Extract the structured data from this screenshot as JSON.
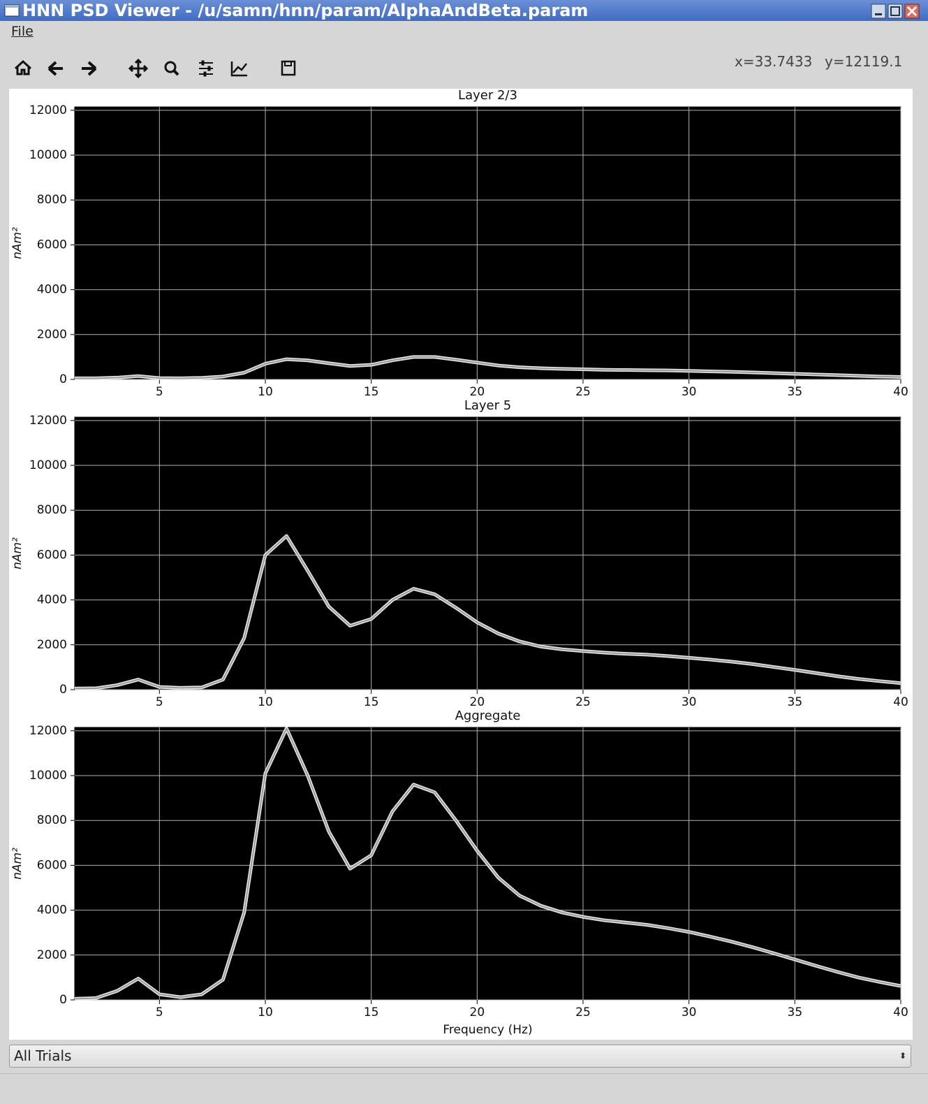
{
  "window": {
    "title": "HNN PSD Viewer - /u/samn/hnn/param/AlphaAndBeta.param"
  },
  "menu": [
    "File"
  ],
  "toolbar": {
    "coord_x": "x=33.7433",
    "coord_y": "y=12119.1"
  },
  "dropdown": {
    "selected": "All Trials"
  },
  "chart_data": [
    {
      "type": "line",
      "title": "Layer 2/3",
      "ylabel": "nAm²",
      "grid": true,
      "background": "#000000",
      "x": [
        1,
        2,
        3,
        4,
        5,
        6,
        7,
        8,
        9,
        10,
        11,
        12,
        13,
        14,
        15,
        16,
        17,
        18,
        19,
        20,
        21,
        22,
        23,
        24,
        25,
        26,
        27,
        28,
        29,
        30,
        31,
        32,
        33,
        34,
        35,
        36,
        37,
        38,
        39,
        40
      ],
      "xlim": [
        1,
        40
      ],
      "xticks": [
        5,
        10,
        15,
        20,
        25,
        30,
        35,
        40
      ],
      "ylim": [
        0,
        12150
      ],
      "yticks": [
        0,
        2000,
        4000,
        6000,
        8000,
        10000,
        12000
      ],
      "series": [
        {
          "color": "#999999",
          "values": [
            50,
            50,
            80,
            150,
            60,
            50,
            70,
            130,
            300,
            700,
            900,
            850,
            720,
            600,
            650,
            850,
            1000,
            1000,
            880,
            750,
            620,
            540,
            500,
            470,
            450,
            430,
            420,
            410,
            400,
            380,
            360,
            340,
            310,
            280,
            250,
            220,
            190,
            160,
            130,
            110
          ]
        }
      ]
    },
    {
      "type": "line",
      "title": "Layer 5",
      "ylabel": "nAm²",
      "grid": true,
      "background": "#000000",
      "x": [
        1,
        2,
        3,
        4,
        5,
        6,
        7,
        8,
        9,
        10,
        11,
        12,
        13,
        14,
        15,
        16,
        17,
        18,
        19,
        20,
        21,
        22,
        23,
        24,
        25,
        26,
        27,
        28,
        29,
        30,
        31,
        32,
        33,
        34,
        35,
        36,
        37,
        38,
        39,
        40
      ],
      "xlim": [
        1,
        40
      ],
      "xticks": [
        5,
        10,
        15,
        20,
        25,
        30,
        35,
        40
      ],
      "ylim": [
        0,
        12150
      ],
      "yticks": [
        0,
        2000,
        4000,
        6000,
        8000,
        10000,
        12000
      ],
      "series": [
        {
          "color": "#999999",
          "values": [
            50,
            60,
            200,
            450,
            120,
            80,
            100,
            450,
            2300,
            6000,
            6850,
            5300,
            3700,
            2850,
            3150,
            4000,
            4500,
            4250,
            3650,
            3000,
            2500,
            2150,
            1920,
            1800,
            1720,
            1650,
            1600,
            1560,
            1500,
            1420,
            1340,
            1250,
            1140,
            1010,
            880,
            740,
            600,
            480,
            380,
            290
          ]
        }
      ]
    },
    {
      "type": "line",
      "title": "Aggregate",
      "ylabel": "nAm²",
      "xlabel": "Frequency (Hz)",
      "grid": true,
      "background": "#000000",
      "x": [
        1,
        2,
        3,
        4,
        5,
        6,
        7,
        8,
        9,
        10,
        11,
        12,
        13,
        14,
        15,
        16,
        17,
        18,
        19,
        20,
        21,
        22,
        23,
        24,
        25,
        26,
        27,
        28,
        29,
        30,
        31,
        32,
        33,
        34,
        35,
        36,
        37,
        38,
        39,
        40
      ],
      "xlim": [
        1,
        40
      ],
      "xticks": [
        5,
        10,
        15,
        20,
        25,
        30,
        35,
        40
      ],
      "ylim": [
        0,
        12150
      ],
      "yticks": [
        0,
        2000,
        4000,
        6000,
        8000,
        10000,
        12000
      ],
      "series": [
        {
          "color": "#999999",
          "values": [
            50,
            80,
            400,
            950,
            250,
            120,
            250,
            900,
            3900,
            10100,
            12100,
            10000,
            7500,
            5850,
            6450,
            8400,
            9600,
            9250,
            8000,
            6650,
            5450,
            4650,
            4200,
            3900,
            3700,
            3550,
            3450,
            3350,
            3200,
            3030,
            2820,
            2600,
            2350,
            2080,
            1800,
            1520,
            1250,
            1000,
            800,
            620
          ]
        }
      ]
    }
  ]
}
